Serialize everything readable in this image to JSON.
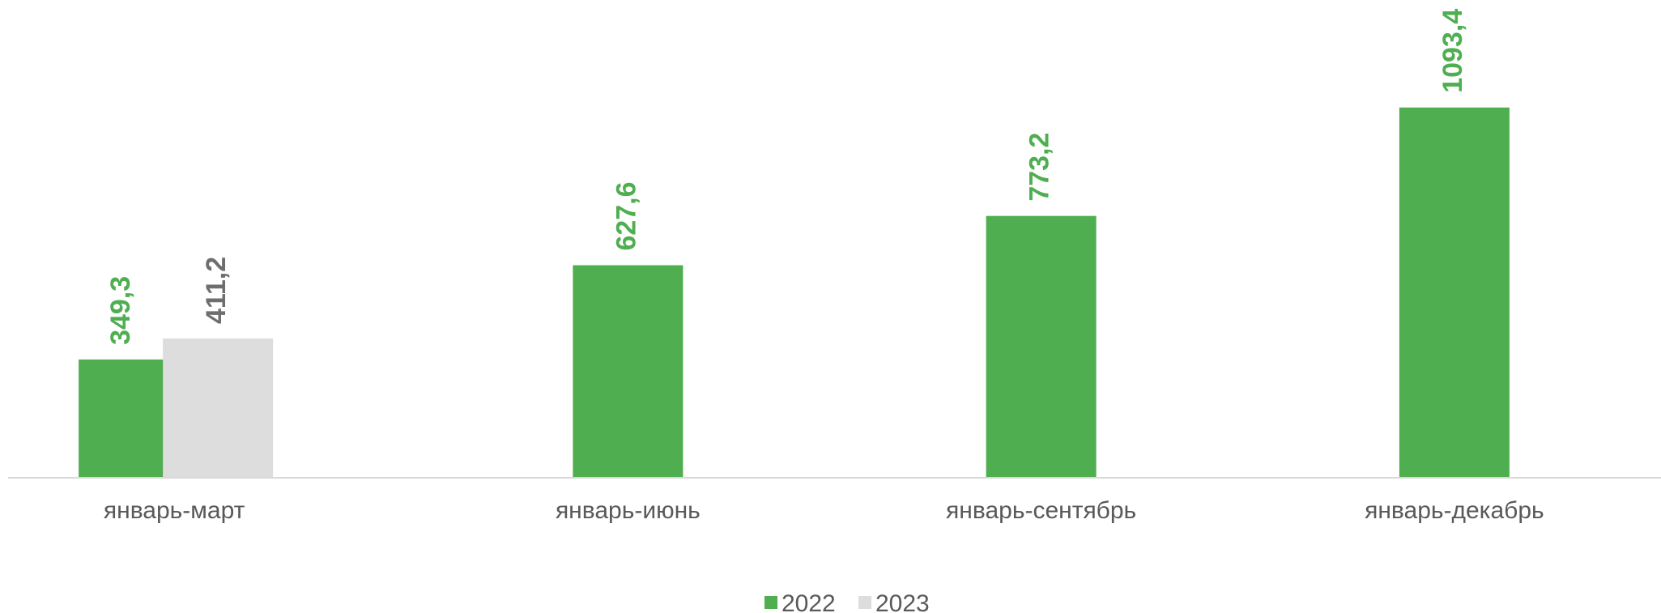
{
  "chart_data": {
    "type": "bar",
    "categories": [
      "январь-март",
      "январь-июнь",
      "январь-сентябрь",
      "январь-декабрь"
    ],
    "series": [
      {
        "name": "2022",
        "color": "#4FAE50",
        "values": [
          349.3,
          627.6,
          773.2,
          1093.4
        ],
        "labels": [
          "349,3",
          "627,6",
          "773,2",
          "1093,4"
        ]
      },
      {
        "name": "2023",
        "color": "#DDDDDD",
        "label_color": "#6E6E6E",
        "values": [
          411.2,
          null,
          null,
          null
        ],
        "labels": [
          "411,2",
          "",
          "",
          ""
        ]
      }
    ],
    "ylim": [
      0,
      1100
    ],
    "grid": false,
    "legend_position": "bottom",
    "data_label_orientation": "vertical"
  }
}
